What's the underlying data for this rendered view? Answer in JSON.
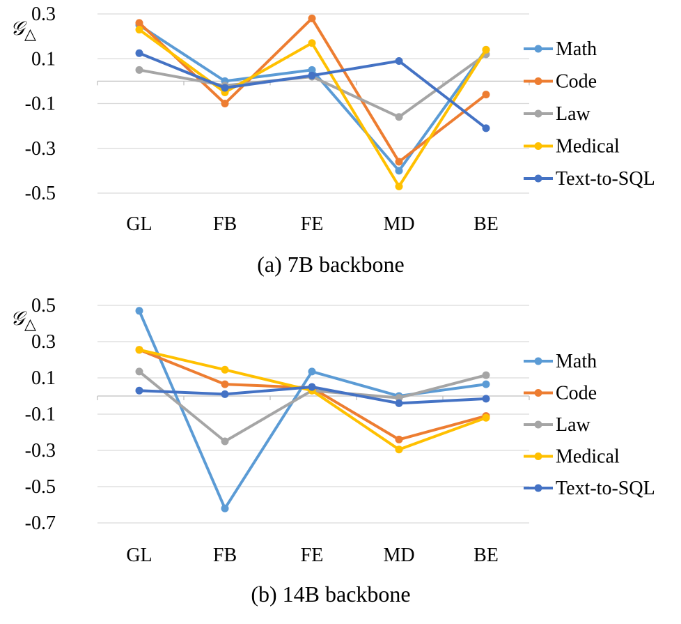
{
  "chart_data": [
    {
      "type": "line",
      "caption": "(a) 7B backbone",
      "ylabel": "𝒢",
      "ylabel_sub": "△",
      "categories": [
        "GL",
        "FB",
        "FE",
        "MD",
        "BE"
      ],
      "yticks": [
        0.3,
        0.1,
        -0.1,
        -0.3,
        -0.5
      ],
      "ytick_labels": [
        "0.3",
        "0.1",
        "-0.1",
        "-0.3",
        "-0.5"
      ],
      "ylim": [
        -0.5,
        0.3
      ],
      "grid": true,
      "legend_position": "right",
      "series": [
        {
          "name": "Math",
          "color": "#5B9BD5",
          "values": [
            0.25,
            0.0,
            0.05,
            -0.4,
            0.14
          ]
        },
        {
          "name": "Code",
          "color": "#ED7D31",
          "values": [
            0.26,
            -0.1,
            0.28,
            -0.36,
            -0.06
          ]
        },
        {
          "name": "Law",
          "color": "#A5A5A5",
          "values": [
            0.05,
            -0.02,
            0.02,
            -0.16,
            0.12
          ]
        },
        {
          "name": "Medical",
          "color": "#FFC000",
          "values": [
            0.23,
            -0.05,
            0.17,
            -0.47,
            0.14
          ]
        },
        {
          "name": "Text-to-SQL",
          "color": "#4472C4",
          "values": [
            0.125,
            -0.03,
            0.025,
            0.09,
            -0.21
          ]
        }
      ]
    },
    {
      "type": "line",
      "caption": "(b) 14B backbone",
      "ylabel": "𝒢",
      "ylabel_sub": "△",
      "categories": [
        "GL",
        "FB",
        "FE",
        "MD",
        "BE"
      ],
      "yticks": [
        0.5,
        0.3,
        0.1,
        -0.1,
        -0.3,
        -0.5,
        -0.7
      ],
      "ytick_labels": [
        "0.5",
        "0.3",
        "0.1",
        "-0.1",
        "-0.3",
        "-0.5",
        "-0.7"
      ],
      "ylim": [
        -0.7,
        0.5
      ],
      "grid": true,
      "legend_position": "right",
      "series": [
        {
          "name": "Math",
          "color": "#5B9BD5",
          "values": [
            0.47,
            -0.62,
            0.135,
            0.0,
            0.065
          ]
        },
        {
          "name": "Code",
          "color": "#ED7D31",
          "values": [
            0.255,
            0.065,
            0.045,
            -0.24,
            -0.11
          ]
        },
        {
          "name": "Law",
          "color": "#A5A5A5",
          "values": [
            0.135,
            -0.25,
            0.03,
            -0.01,
            0.115
          ]
        },
        {
          "name": "Medical",
          "color": "#FFC000",
          "values": [
            0.255,
            0.145,
            0.03,
            -0.295,
            -0.12
          ]
        },
        {
          "name": "Text-to-SQL",
          "color": "#4472C4",
          "values": [
            0.03,
            0.01,
            0.05,
            -0.04,
            -0.015
          ]
        }
      ]
    }
  ]
}
